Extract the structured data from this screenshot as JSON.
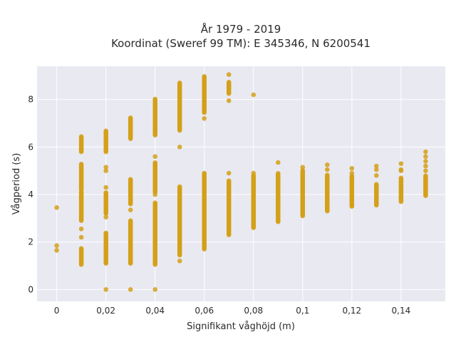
{
  "chart_data": {
    "type": "scatter",
    "title_lines": [
      "År 1979 - 2019",
      "Koordinat (Sweref 99 TM): E 345346, N 6200541"
    ],
    "xlabel": "Signifikant våghöjd (m)",
    "ylabel": "Vågperiod (s)",
    "xlim": [
      -0.008,
      0.158
    ],
    "ylim": [
      -0.5,
      9.4
    ],
    "x_ticks": [
      0,
      0.02,
      0.04,
      0.06,
      0.08,
      0.1,
      0.12,
      0.14
    ],
    "x_tick_labels": [
      "0",
      "0,02",
      "0,04",
      "0,06",
      "0,08",
      "0,1",
      "0,12",
      "0,14"
    ],
    "y_ticks": [
      0,
      2,
      4,
      6,
      8
    ],
    "y_tick_labels": [
      "0",
      "2",
      "4",
      "6",
      "8"
    ],
    "grid": true,
    "colors": {
      "marker": "#d4a017",
      "background": "#e9e9f2",
      "grid": "#ffffff"
    },
    "point_groups": [
      {
        "x": 0.0,
        "ranges": [],
        "points": [
          3.45,
          1.85,
          1.65
        ]
      },
      {
        "x": 0.01,
        "ranges": [
          [
            1.05,
            1.75
          ],
          [
            2.9,
            4.1
          ],
          [
            4.2,
            5.3
          ],
          [
            5.8,
            6.45
          ]
        ],
        "points": [
          2.55,
          2.2
        ]
      },
      {
        "x": 0.02,
        "ranges": [
          [
            1.1,
            2.4
          ],
          [
            3.2,
            4.1
          ],
          [
            5.8,
            6.7
          ]
        ],
        "points": [
          0.0,
          3.05,
          4.3,
          5.0,
          5.15
        ]
      },
      {
        "x": 0.03,
        "ranges": [
          [
            1.1,
            2.9
          ],
          [
            3.6,
            4.65
          ],
          [
            6.35,
            7.25
          ]
        ],
        "points": [
          0.0,
          3.35
        ]
      },
      {
        "x": 0.04,
        "ranges": [
          [
            1.05,
            3.65
          ],
          [
            4.1,
            5.35
          ],
          [
            6.5,
            8.05
          ]
        ],
        "points": [
          0.0,
          4.0,
          5.6
        ]
      },
      {
        "x": 0.05,
        "ranges": [
          [
            1.45,
            4.35
          ],
          [
            6.7,
            8.7
          ]
        ],
        "points": [
          1.2,
          6.0
        ]
      },
      {
        "x": 0.06,
        "ranges": [
          [
            1.7,
            4.9
          ],
          [
            7.45,
            9.0
          ]
        ],
        "points": [
          7.2
        ]
      },
      {
        "x": 0.07,
        "ranges": [
          [
            2.3,
            4.6
          ],
          [
            8.25,
            8.75
          ]
        ],
        "points": [
          4.9,
          7.95,
          9.05
        ]
      },
      {
        "x": 0.08,
        "ranges": [
          [
            2.6,
            4.8
          ]
        ],
        "points": [
          4.9,
          8.2
        ]
      },
      {
        "x": 0.09,
        "ranges": [
          [
            2.85,
            4.9
          ]
        ],
        "points": [
          5.35
        ]
      },
      {
        "x": 0.1,
        "ranges": [
          [
            3.1,
            5.05
          ]
        ],
        "points": [
          5.15
        ]
      },
      {
        "x": 0.11,
        "ranges": [
          [
            3.3,
            4.85
          ]
        ],
        "points": [
          5.05,
          5.25
        ]
      },
      {
        "x": 0.12,
        "ranges": [
          [
            3.5,
            4.8
          ]
        ],
        "points": [
          4.9,
          5.1
        ]
      },
      {
        "x": 0.13,
        "ranges": [
          [
            3.55,
            4.45
          ]
        ],
        "points": [
          4.8,
          5.05,
          5.2
        ]
      },
      {
        "x": 0.14,
        "ranges": [
          [
            3.7,
            4.7
          ]
        ],
        "points": [
          5.0,
          5.05,
          5.3
        ]
      },
      {
        "x": 0.15,
        "ranges": [
          [
            3.95,
            4.8
          ]
        ],
        "points": [
          5.0,
          5.2,
          5.4,
          5.6,
          5.8
        ]
      }
    ]
  }
}
